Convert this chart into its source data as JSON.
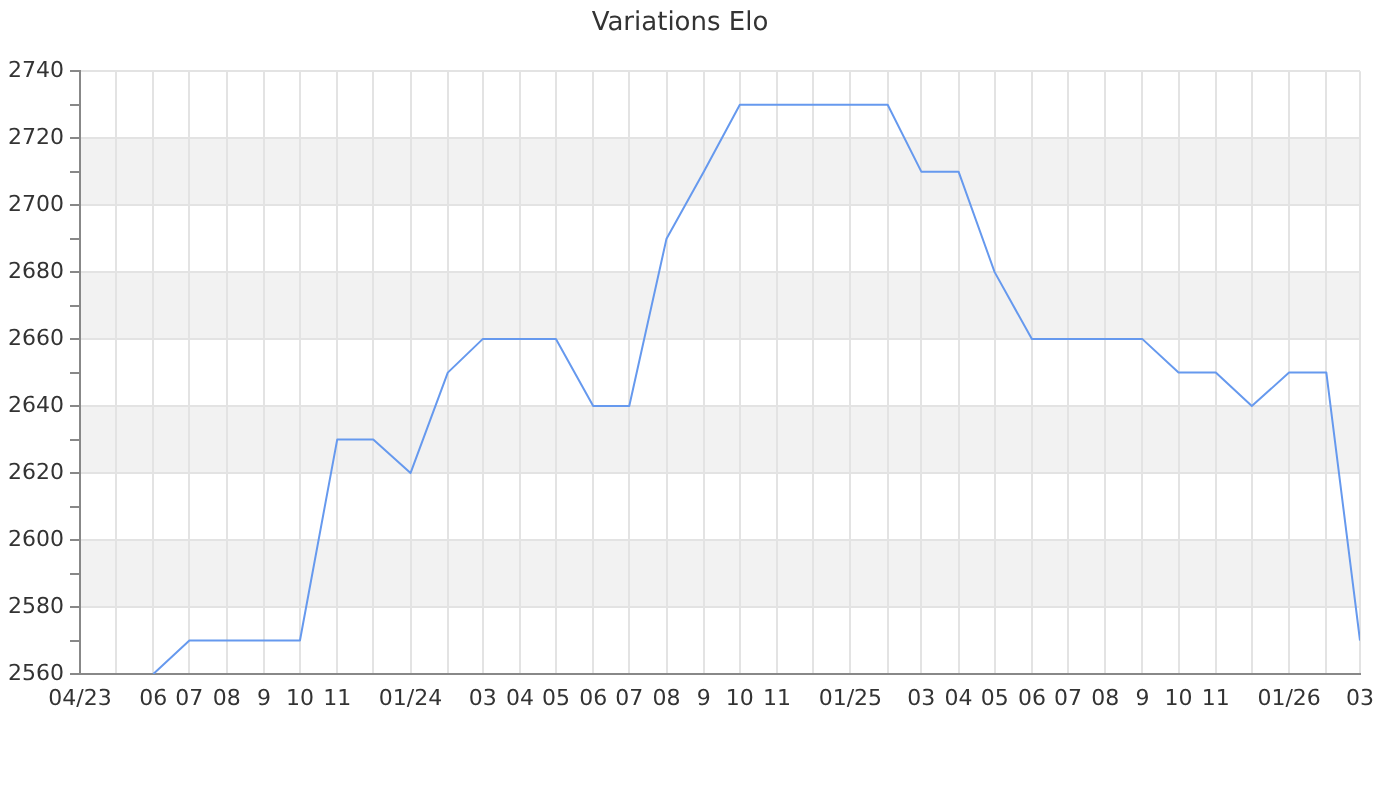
{
  "chart_data": {
    "type": "line",
    "title": "Variations Elo",
    "x": [
      "2023-06",
      "2023-07",
      "2023-08",
      "2023-09",
      "2023-10",
      "2023-11",
      "2023-12",
      "2024-01",
      "2024-02",
      "2024-03",
      "2024-04",
      "2024-05",
      "2024-06",
      "2024-07",
      "2024-08",
      "2024-09",
      "2024-10",
      "2024-11",
      "2024-12",
      "2025-01",
      "2025-02",
      "2025-03",
      "2025-04",
      "2025-05",
      "2025-06",
      "2025-07",
      "2025-08",
      "2025-09",
      "2025-10",
      "2025-11",
      "2025-12",
      "2026-01",
      "2026-02",
      "2026-03"
    ],
    "series": [
      {
        "color": "#6699ee",
        "values": [
          2560,
          2570,
          2570,
          2570,
          2570,
          2630,
          2630,
          2620,
          2650,
          2660,
          2660,
          2660,
          2640,
          2640,
          2690,
          2710,
          2730,
          2730,
          2730,
          2730,
          2730,
          2710,
          2710,
          2680,
          2660,
          2660,
          2660,
          2660,
          2650,
          2650,
          2640,
          2650,
          2650,
          2570
        ]
      }
    ],
    "xlim": [
      "2023-04",
      "2026-03"
    ],
    "xticks": [
      {
        "value": "2023-04",
        "label": "04/23"
      },
      {
        "value": "2023-05",
        "label": null
      },
      {
        "value": "2023-06",
        "label": "06"
      },
      {
        "value": "2023-07",
        "label": "07"
      },
      {
        "value": "2023-08",
        "label": "08"
      },
      {
        "value": "2023-09",
        "label": "9"
      },
      {
        "value": "2023-10",
        "label": "10"
      },
      {
        "value": "2023-11",
        "label": "11"
      },
      {
        "value": "2023-12",
        "label": null
      },
      {
        "value": "2024-01",
        "label": "01/24"
      },
      {
        "value": "2024-02",
        "label": null
      },
      {
        "value": "2024-03",
        "label": "03"
      },
      {
        "value": "2024-04",
        "label": "04"
      },
      {
        "value": "2024-05",
        "label": "05"
      },
      {
        "value": "2024-06",
        "label": "06"
      },
      {
        "value": "2024-07",
        "label": "07"
      },
      {
        "value": "2024-08",
        "label": "08"
      },
      {
        "value": "2024-09",
        "label": "9"
      },
      {
        "value": "2024-10",
        "label": "10"
      },
      {
        "value": "2024-11",
        "label": "11"
      },
      {
        "value": "2024-12",
        "label": null
      },
      {
        "value": "2025-01",
        "label": "01/25"
      },
      {
        "value": "2025-02",
        "label": null
      },
      {
        "value": "2025-03",
        "label": "03"
      },
      {
        "value": "2025-04",
        "label": "04"
      },
      {
        "value": "2025-05",
        "label": "05"
      },
      {
        "value": "2025-06",
        "label": "06"
      },
      {
        "value": "2025-07",
        "label": "07"
      },
      {
        "value": "2025-08",
        "label": "08"
      },
      {
        "value": "2025-09",
        "label": "9"
      },
      {
        "value": "2025-10",
        "label": "10"
      },
      {
        "value": "2025-11",
        "label": "11"
      },
      {
        "value": "2025-12",
        "label": null
      },
      {
        "value": "2026-01",
        "label": "01/26"
      },
      {
        "value": "2026-02",
        "label": null
      },
      {
        "value": "2026-03",
        "label": "03"
      }
    ],
    "ylim": [
      2560,
      2740
    ],
    "yticks": [
      2560,
      {
        "value": 2570,
        "label": null
      },
      2580,
      {
        "value": 2590,
        "label": null
      },
      2600,
      {
        "value": 2610,
        "label": null
      },
      2620,
      {
        "value": 2630,
        "label": null
      },
      2640,
      {
        "value": 2650,
        "label": null
      },
      2660,
      {
        "value": 2670,
        "label": null
      },
      2680,
      {
        "value": 2690,
        "label": null
      },
      2700,
      {
        "value": 2710,
        "label": null
      },
      2720,
      {
        "value": 2730,
        "label": null
      },
      2740
    ],
    "grid": true,
    "bands": [
      {
        "axis": "y",
        "from": 2580,
        "to": 2600,
        "color": "#f2f2f2"
      },
      {
        "axis": "y",
        "from": 2620,
        "to": 2640,
        "color": "#f2f2f2"
      },
      {
        "axis": "y",
        "from": 2660,
        "to": 2680,
        "color": "#f2f2f2"
      },
      {
        "axis": "y",
        "from": 2700,
        "to": 2720,
        "color": "#f2f2f2"
      }
    ],
    "legend": false,
    "marker": "none",
    "line_style": "solid"
  }
}
